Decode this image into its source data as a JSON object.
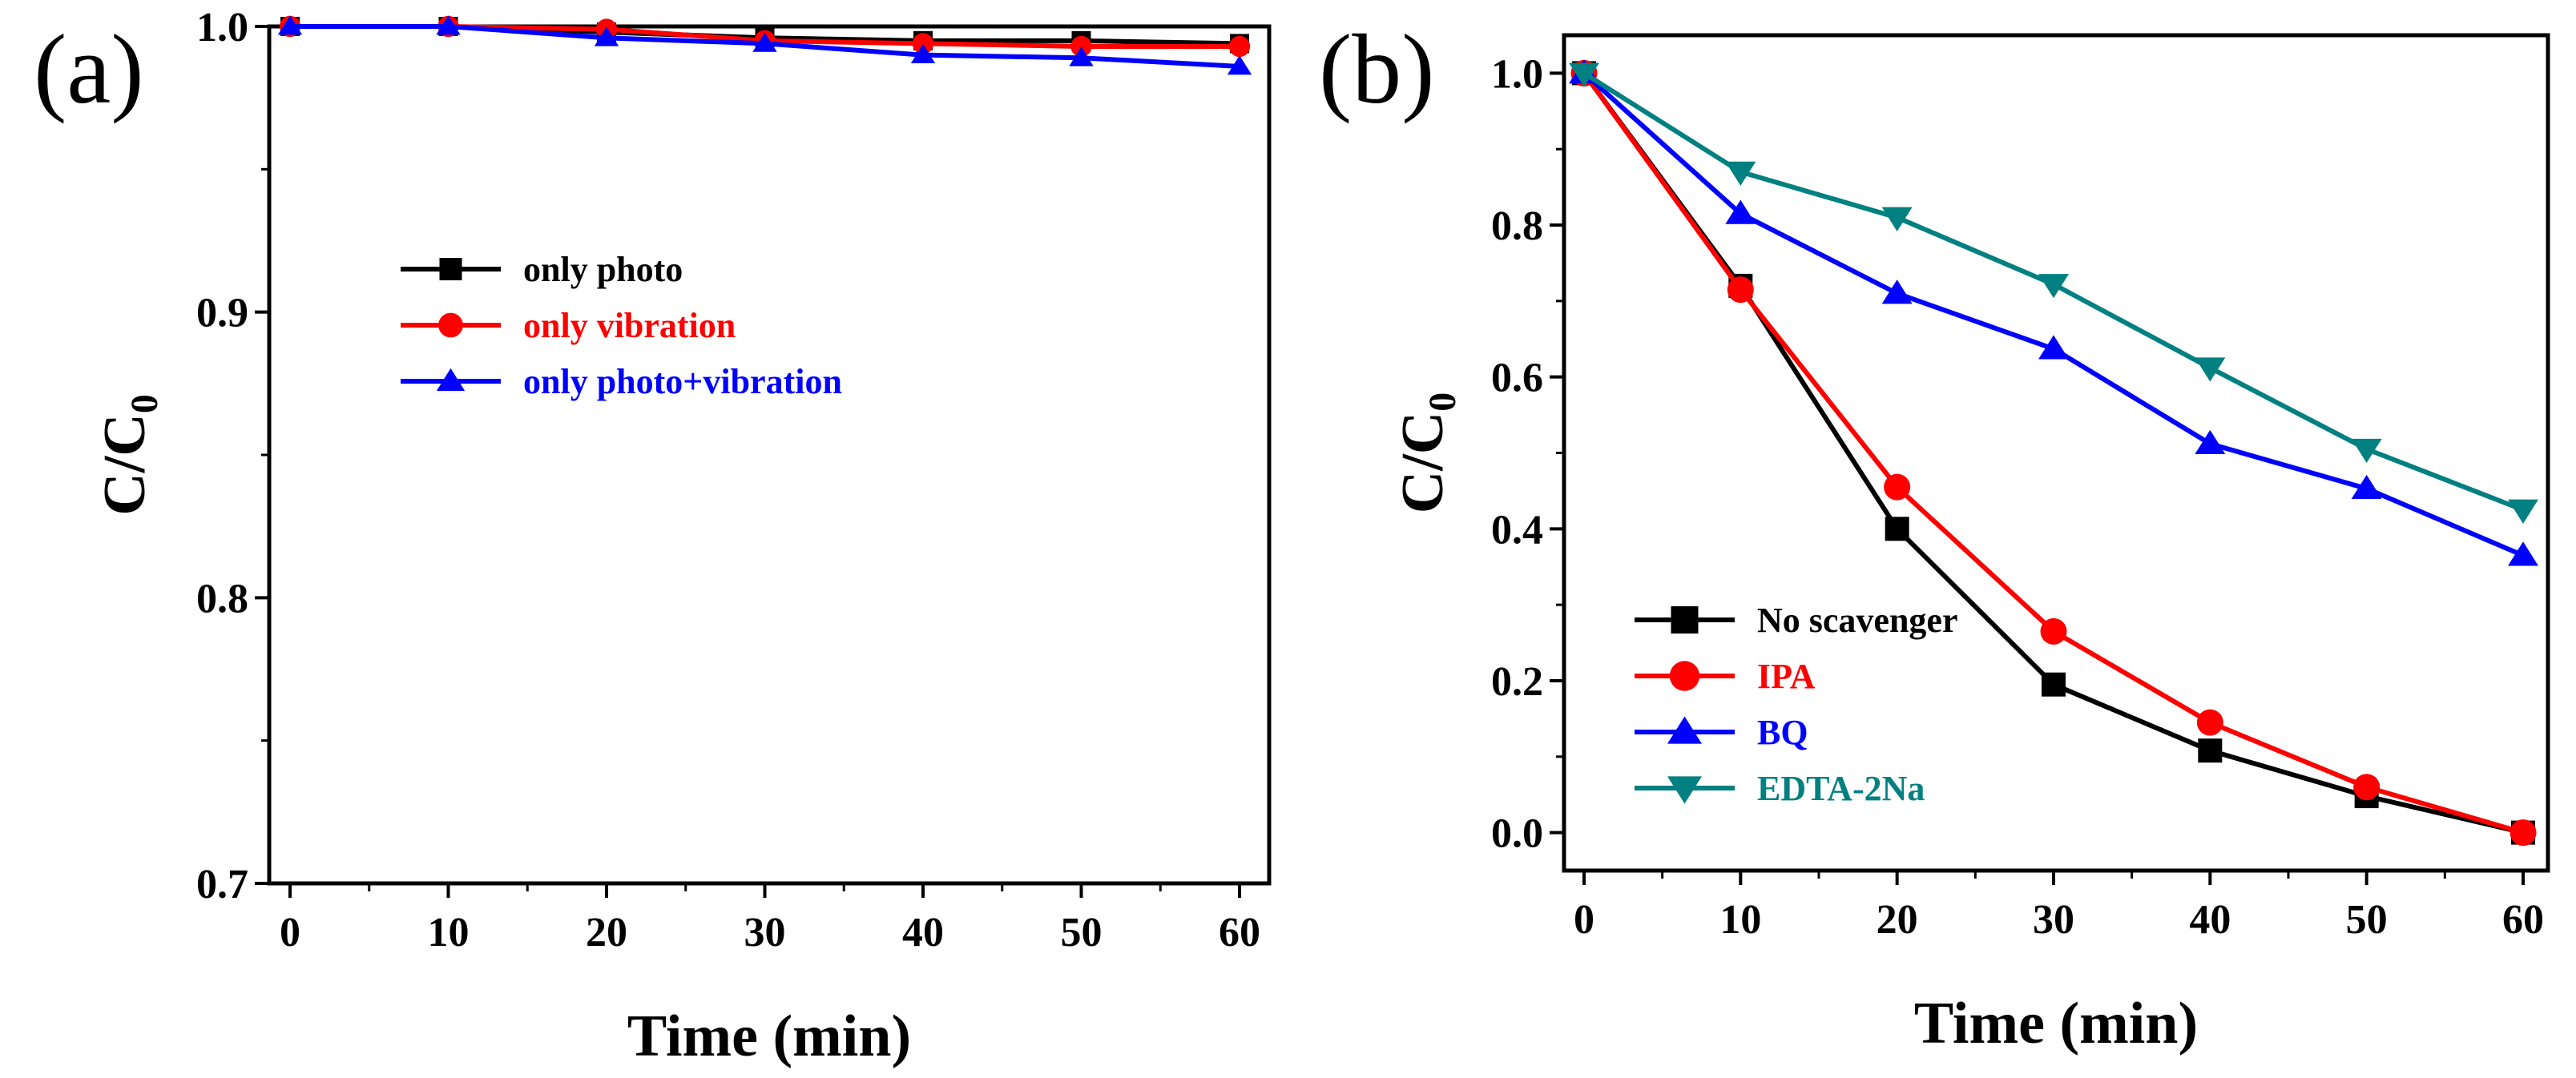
{
  "chart_data": [
    {
      "panel_label": "(a)",
      "type": "line",
      "xlabel": "Time (min)",
      "ylabel_main": "C/C",
      "ylabel_sub": "0",
      "xlim": [
        0,
        60
      ],
      "ylim": [
        0.7,
        1.0
      ],
      "xticks": [
        0,
        10,
        20,
        30,
        40,
        50,
        60
      ],
      "yticks": [
        0.7,
        0.8,
        0.9,
        1.0
      ],
      "xtick_labels": [
        "0",
        "10",
        "20",
        "30",
        "40",
        "50",
        "60"
      ],
      "ytick_labels": [
        "0.7",
        "0.8",
        "0.9",
        "1.0"
      ],
      "legend_position": "center-left",
      "x": [
        0,
        10,
        20,
        30,
        40,
        50,
        60
      ],
      "series": [
        {
          "name": "only photo",
          "color": "#000000",
          "marker": "square",
          "values": [
            1.0,
            1.0,
            0.998,
            0.996,
            0.995,
            0.995,
            0.994
          ]
        },
        {
          "name": "only vibration",
          "color": "#ff0000",
          "marker": "circle",
          "values": [
            1.0,
            1.0,
            0.999,
            0.995,
            0.994,
            0.993,
            0.993
          ]
        },
        {
          "name": "only photo+vibration",
          "color": "#0000ff",
          "marker": "triangle-up",
          "values": [
            1.0,
            1.0,
            0.996,
            0.994,
            0.99,
            0.989,
            0.986
          ]
        }
      ]
    },
    {
      "panel_label": "(b)",
      "type": "line",
      "xlabel": "Time (min)",
      "ylabel_main": "C/C",
      "ylabel_sub": "0",
      "xlim": [
        0,
        60
      ],
      "ylim": [
        -0.05,
        1.05
      ],
      "xticks": [
        0,
        10,
        20,
        30,
        40,
        50,
        60
      ],
      "yticks": [
        0.0,
        0.2,
        0.4,
        0.6,
        0.8,
        1.0
      ],
      "xtick_labels": [
        "0",
        "10",
        "20",
        "30",
        "40",
        "50",
        "60"
      ],
      "ytick_labels": [
        "0.0",
        "0.2",
        "0.4",
        "0.6",
        "0.8",
        "1.0"
      ],
      "legend_position": "bottom-left",
      "x": [
        0,
        10,
        20,
        30,
        40,
        50,
        60
      ],
      "series": [
        {
          "name": "No scavenger",
          "color": "#000000",
          "marker": "square",
          "values": [
            1.0,
            0.72,
            0.4,
            0.195,
            0.108,
            0.048,
            0.0
          ]
        },
        {
          "name": "IPA",
          "color": "#ff0000",
          "marker": "circle",
          "values": [
            1.0,
            0.715,
            0.455,
            0.265,
            0.145,
            0.06,
            0.0
          ]
        },
        {
          "name": "BQ",
          "color": "#0000ff",
          "marker": "triangle-up",
          "values": [
            1.0,
            0.815,
            0.71,
            0.637,
            0.512,
            0.453,
            0.365
          ]
        },
        {
          "name": "EDTA-2Na",
          "color": "#008080",
          "marker": "triangle-down",
          "values": [
            1.0,
            0.87,
            0.81,
            0.722,
            0.612,
            0.505,
            0.425
          ]
        }
      ]
    }
  ]
}
